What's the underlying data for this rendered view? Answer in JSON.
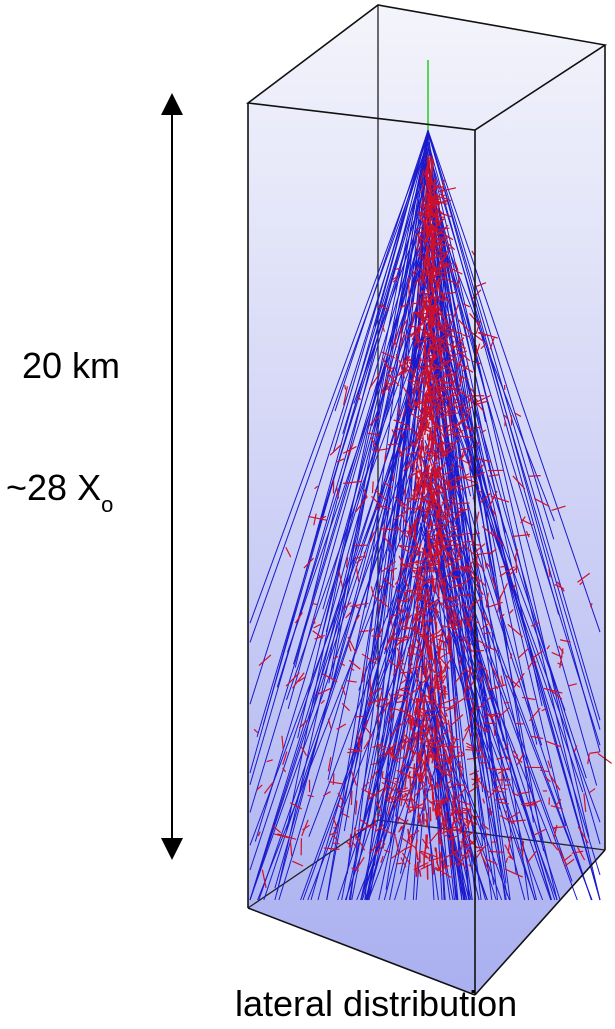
{
  "labels": {
    "height": "20 km",
    "depth": "~28 X",
    "depth_subscript": "o",
    "caption": "lateral distribution"
  }
}
